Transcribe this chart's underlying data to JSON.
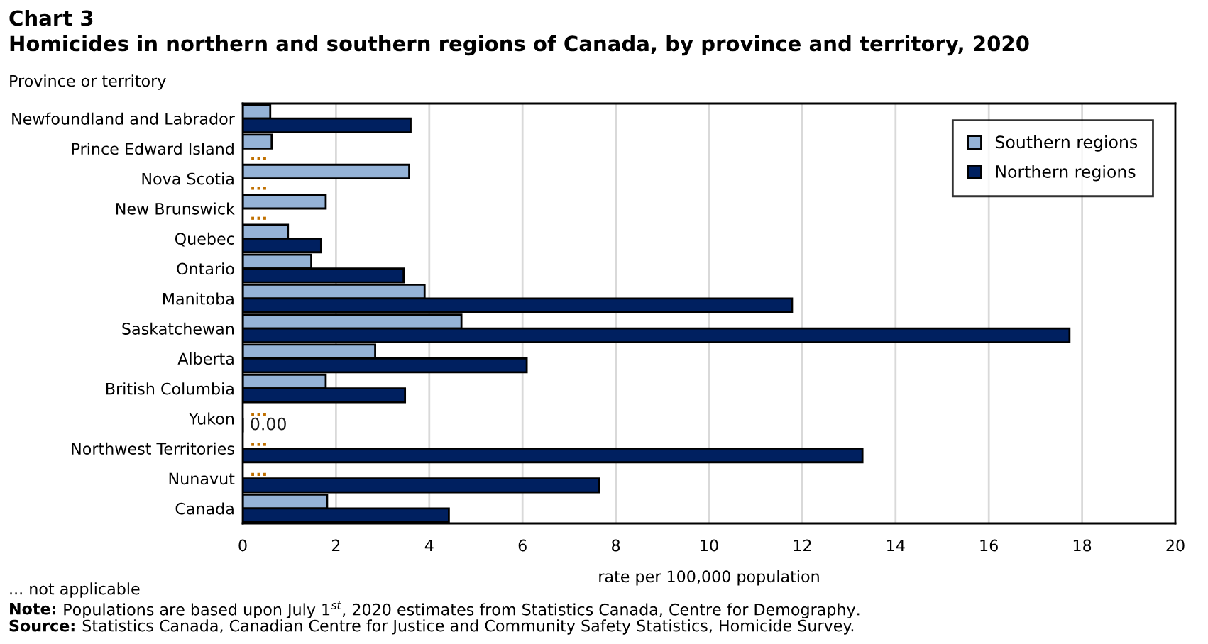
{
  "chart_data": {
    "type": "bar",
    "orientation": "horizontal",
    "title": "Chart 3",
    "subtitle": "Homicides in northern and southern regions of Canada, by province and territory, 2020",
    "ylabel": "Province or territory",
    "xlabel": "rate per 100,000 population",
    "categories": [
      "Newfoundland and Labrador",
      "Prince Edward Island",
      "Nova Scotia",
      "New Brunswick",
      "Quebec",
      "Ontario",
      "Manitoba",
      "Saskatchewan",
      "Alberta",
      "British Columbia",
      "Yukon",
      "Northwest Territories",
      "Nunavut",
      "Canada"
    ],
    "series": [
      {
        "name": "Southern regions",
        "color": "#95b3d7",
        "values": [
          0.59,
          0.62,
          3.57,
          1.78,
          0.97,
          1.47,
          3.9,
          4.69,
          2.84,
          1.78,
          null,
          null,
          null,
          1.81
        ],
        "value_labels": [
          null,
          null,
          null,
          null,
          null,
          null,
          null,
          null,
          null,
          null,
          "...",
          "...",
          "...",
          null
        ]
      },
      {
        "name": "Northern regions",
        "color": "#002060",
        "values": [
          3.6,
          null,
          null,
          null,
          1.68,
          3.45,
          11.78,
          17.73,
          6.09,
          3.48,
          0,
          13.29,
          7.64,
          4.42
        ],
        "value_labels": [
          null,
          "...",
          "...",
          "...",
          null,
          null,
          null,
          null,
          null,
          null,
          "0.00",
          null,
          null,
          null
        ]
      }
    ],
    "xlim": [
      0,
      20
    ],
    "xticks": [
      0,
      2,
      4,
      6,
      8,
      10,
      12,
      14,
      16,
      18,
      20
    ],
    "grid": "x",
    "legend": "top right",
    "annotations": [
      "... not applicable",
      "Note: Populations are based upon July 1$^{st}$, 2020 estimates from Statistics Canada, Centre for Demography.",
      "Source: Statistics Canada, Canadian Centre for Justice and Community Safety Statistics, Homicide Survey."
    ]
  }
}
